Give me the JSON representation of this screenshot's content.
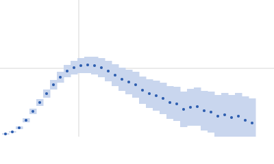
{
  "chart_data": {
    "type": "scatter",
    "x": [
      8,
      18,
      28,
      38,
      48,
      58,
      68,
      78,
      88,
      98,
      108,
      118,
      128,
      138,
      148,
      158,
      168,
      178,
      188,
      198,
      208,
      218,
      228,
      238,
      248,
      258,
      268,
      278,
      288,
      298,
      308,
      318,
      328,
      338,
      348,
      358,
      368
    ],
    "series": [
      {
        "color": "#2f5fb0",
        "band_color": "#c9d6ee",
        "values": [
          -96,
          -93,
          -87,
          -76,
          -63,
          -50,
          -37,
          -24,
          -13,
          -4,
          1,
          4,
          5,
          4,
          1,
          -4,
          -10,
          -16,
          -20,
          -24,
          -32,
          -37,
          -40,
          -44,
          -50,
          -52,
          -60,
          -57,
          -56,
          -62,
          -64,
          -70,
          -68,
          -72,
          -70,
          -76,
          -80
        ],
        "errors": [
          1,
          1,
          2,
          3,
          4,
          5,
          6,
          7,
          8,
          9,
          10,
          11,
          12,
          13,
          14,
          15,
          16,
          17,
          18,
          19,
          20,
          21,
          22,
          23,
          24,
          25,
          26,
          27,
          28,
          29,
          30,
          31,
          32,
          33,
          34,
          35,
          36
        ]
      }
    ],
    "xlim": [
      0,
      400
    ],
    "ylim": [
      -100,
      100
    ],
    "xticks": [
      115
    ],
    "yticks": [
      0
    ],
    "grid": true
  }
}
